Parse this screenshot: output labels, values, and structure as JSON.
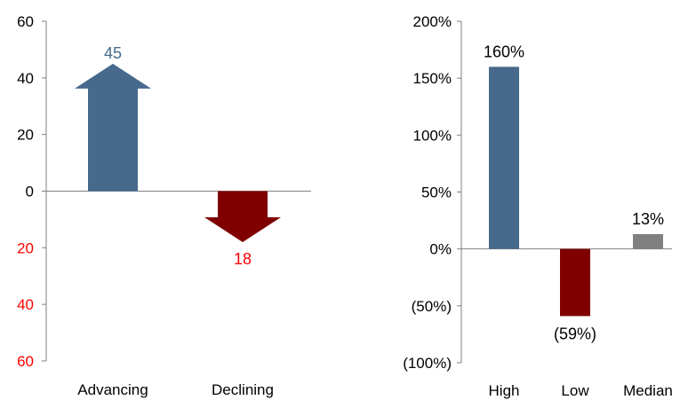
{
  "colors": {
    "advancing": "#46698c",
    "declining": "#800000",
    "high": "#46698c",
    "low": "#800000",
    "median": "#808080",
    "negative_tick": "#ff0000",
    "axis": "#808080",
    "text": "#000000"
  },
  "chart_data": [
    {
      "type": "bar",
      "style": "arrows",
      "categories": [
        "Advancing",
        "Declining"
      ],
      "values": [
        45,
        -18
      ],
      "data_labels": [
        "45",
        "18"
      ],
      "ylim": [
        -60,
        60
      ],
      "ytick_values": [
        60,
        40,
        20,
        0,
        -20,
        -40,
        -60
      ],
      "ytick_labels": [
        "60",
        "40",
        "20",
        "0",
        "20",
        "40",
        "60"
      ],
      "grid": false,
      "title": "",
      "xlabel": "",
      "ylabel": ""
    },
    {
      "type": "bar",
      "categories": [
        "High",
        "Low",
        "Median"
      ],
      "values": [
        160,
        -59,
        13
      ],
      "data_labels": [
        "160%",
        "(59%)",
        "13%"
      ],
      "ylim": [
        -100,
        200
      ],
      "ytick_values": [
        200,
        150,
        100,
        50,
        0,
        -50,
        -100
      ],
      "ytick_labels": [
        "200%",
        "150%",
        "100%",
        "50%",
        "0%",
        "(50%)",
        "(100%)"
      ],
      "grid": false,
      "title": "",
      "xlabel": "",
      "ylabel": ""
    }
  ]
}
